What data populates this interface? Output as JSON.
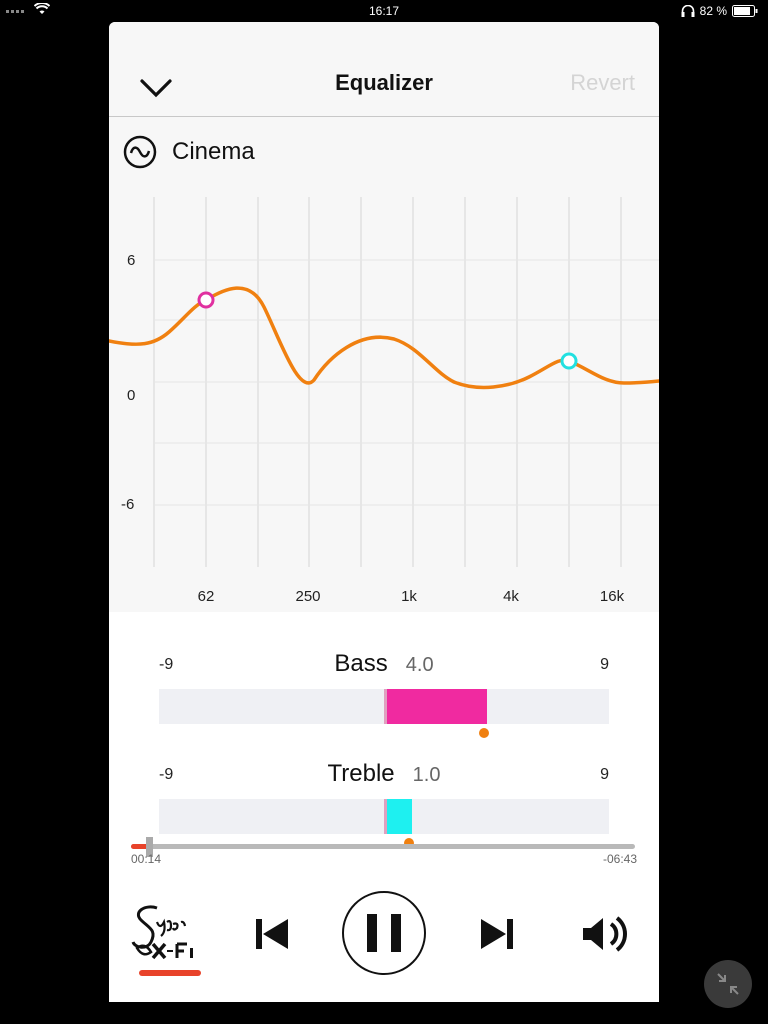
{
  "status_bar": {
    "time": "16:17",
    "battery": "82 %"
  },
  "header": {
    "title": "Equalizer",
    "revert_label": "Revert"
  },
  "preset": {
    "name": "Cinema",
    "icon": "sine-wave-icon"
  },
  "graph": {
    "y_ticks": [
      "6",
      "0",
      "-6"
    ],
    "x_ticks": [
      "62",
      "250",
      "1k",
      "4k",
      "16k"
    ]
  },
  "bass": {
    "label": "Bass",
    "value": "4.0",
    "min": "-9",
    "max": "9",
    "value_num": 4.0,
    "color": "#f02aa0"
  },
  "treble": {
    "label": "Treble",
    "value": "1.0",
    "min": "-9",
    "max": "9",
    "value_num": 1.0,
    "color": "#1ef0f0"
  },
  "playback": {
    "elapsed": "00:14",
    "remaining": "-06:43",
    "progress": 0.035
  },
  "colors": {
    "accent": "#f08010",
    "progress": "#e8432a"
  }
}
